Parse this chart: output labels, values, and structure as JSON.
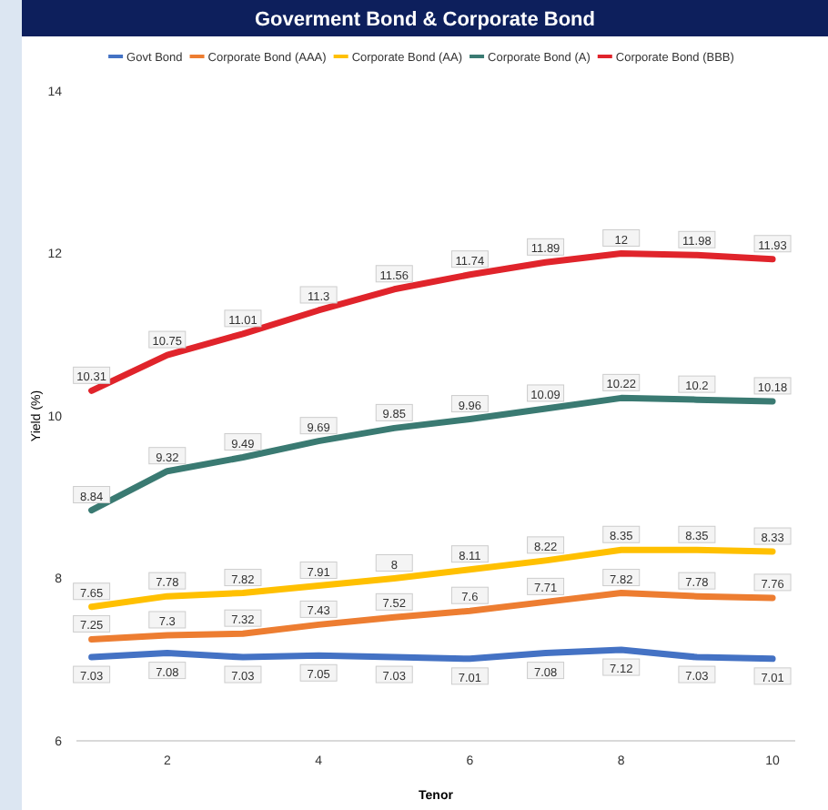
{
  "chart_data": {
    "type": "line",
    "title": "Goverment Bond & Corporate Bond",
    "xlabel": "Tenor",
    "ylabel": "Yield (%)",
    "x": [
      1,
      2,
      3,
      4,
      5,
      6,
      7,
      8,
      9,
      10
    ],
    "series": [
      {
        "name": "Govt Bond",
        "color": "#4472c4",
        "values": [
          7.03,
          7.08,
          7.03,
          7.05,
          7.03,
          7.01,
          7.08,
          7.12,
          7.03,
          7.01
        ]
      },
      {
        "name": "Corporate Bond (AAA)",
        "color": "#ed7d31",
        "values": [
          7.25,
          7.3,
          7.32,
          7.43,
          7.52,
          7.6,
          7.71,
          7.82,
          7.78,
          7.76
        ]
      },
      {
        "name": "Corporate Bond (AA)",
        "color": "#ffc000",
        "values": [
          7.65,
          7.78,
          7.82,
          7.91,
          8.0,
          8.11,
          8.22,
          8.35,
          8.35,
          8.33
        ]
      },
      {
        "name": "Corporate Bond (A)",
        "color": "#3a7a72",
        "values": [
          8.84,
          9.32,
          9.49,
          9.69,
          9.85,
          9.96,
          10.09,
          10.22,
          10.2,
          10.18
        ]
      },
      {
        "name": "Corporate Bond (BBB)",
        "color": "#e0242b",
        "values": [
          10.31,
          10.75,
          11.01,
          11.3,
          11.56,
          11.74,
          11.89,
          12.0,
          11.98,
          11.93
        ]
      }
    ],
    "xlim": [
      0.8,
      10.3
    ],
    "xticks": [
      2,
      4,
      6,
      8,
      10
    ],
    "ylim": [
      6,
      14
    ],
    "yticks": [
      6,
      8,
      10,
      12,
      14
    ],
    "grid": false,
    "legend": "top",
    "data_labels": true,
    "marker": "none",
    "line_style": "solid"
  }
}
